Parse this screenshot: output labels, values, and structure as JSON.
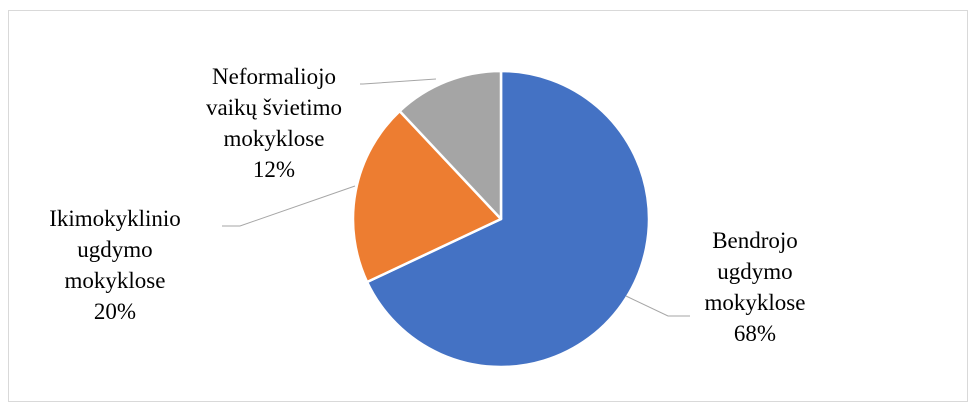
{
  "chart_data": {
    "type": "pie",
    "title": "",
    "slices": [
      {
        "name": "Bendrojo ugdymo mokyklose",
        "value": 68,
        "color": "#4472c4",
        "label_lines": [
          "Bendrojo",
          "ugdymo",
          "mokyklose",
          "68%"
        ]
      },
      {
        "name": "Ikimokyklinio ugdymo mokyklose",
        "value": 20,
        "color": "#ed7d31",
        "label_lines": [
          "Ikimokyklinio",
          "ugdymo",
          "mokyklose",
          "20%"
        ]
      },
      {
        "name": "Neformaliojo vaikų švietimo mokyklose",
        "value": 12,
        "color": "#a5a5a5",
        "label_lines": [
          "Neformaliojo",
          "vaikų švietimo",
          "mokyklose",
          "12%"
        ]
      }
    ],
    "legend": "none",
    "start": "top",
    "direction": "clockwise"
  }
}
